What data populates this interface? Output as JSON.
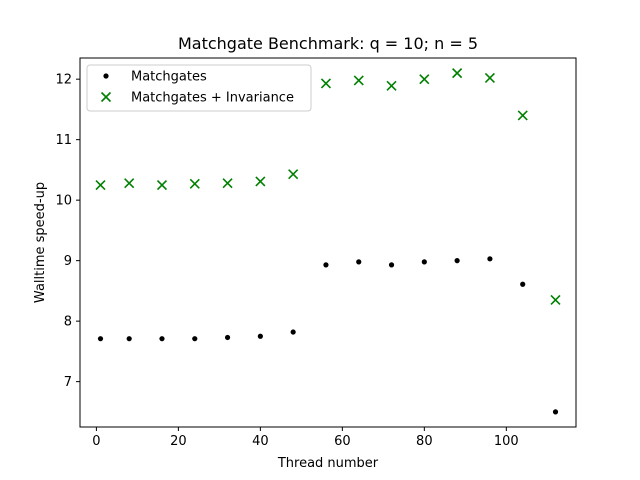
{
  "chart_data": {
    "type": "scatter",
    "title": "Matchgate Benchmark: q = 10; n = 5",
    "xlabel": "Thread number",
    "ylabel": "Walltime speed-up",
    "xlim": [
      -4,
      117
    ],
    "ylim": [
      6.25,
      12.35
    ],
    "xticks": [
      0,
      20,
      40,
      60,
      80,
      100
    ],
    "yticks": [
      7,
      8,
      9,
      10,
      11,
      12
    ],
    "grid": false,
    "legend_position": "top-left",
    "series": [
      {
        "name": "Matchgates",
        "marker": "dot",
        "color": "#000000",
        "x": [
          1,
          8,
          16,
          24,
          32,
          40,
          48,
          56,
          64,
          72,
          80,
          88,
          96,
          104,
          112
        ],
        "y": [
          7.71,
          7.71,
          7.71,
          7.71,
          7.73,
          7.75,
          7.82,
          8.93,
          8.98,
          8.93,
          8.98,
          9.0,
          9.03,
          8.61,
          6.5
        ]
      },
      {
        "name": "Matchgates + Invariance",
        "marker": "x",
        "color": "#008000",
        "x": [
          1,
          8,
          16,
          24,
          32,
          40,
          48,
          56,
          64,
          72,
          80,
          88,
          96,
          104,
          112
        ],
        "y": [
          10.25,
          10.28,
          10.25,
          10.27,
          10.28,
          10.31,
          10.43,
          11.93,
          11.98,
          11.89,
          12.0,
          12.1,
          12.02,
          11.4,
          8.35
        ]
      }
    ]
  }
}
